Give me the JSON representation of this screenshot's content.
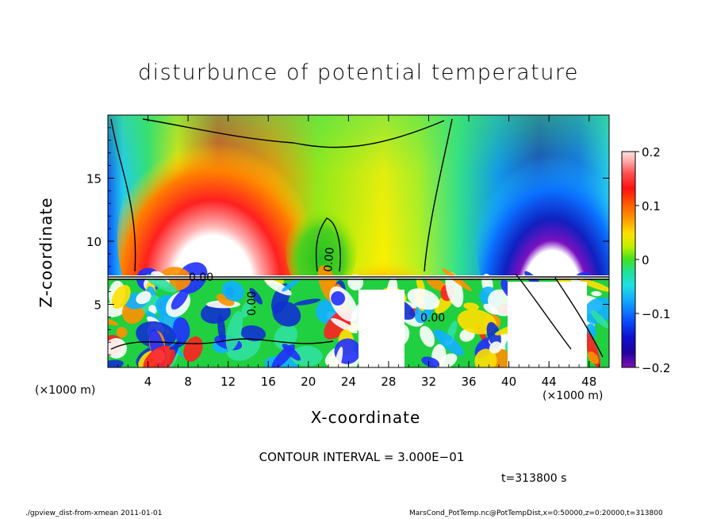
{
  "chart_data": {
    "type": "heatmap",
    "title": "disturbunce of potential temperature",
    "xlabel": "X-coordinate",
    "ylabel": "Z-coordinate",
    "x_unit": "(×1000 m)",
    "x_ticks": [
      4,
      8,
      12,
      16,
      20,
      24,
      28,
      32,
      36,
      40,
      44,
      48
    ],
    "y_ticks": [
      5,
      10,
      15
    ],
    "xlim": [
      0,
      50
    ],
    "ylim": [
      0,
      20
    ],
    "colorbar": {
      "ticks": [
        0.2,
        0.1,
        0,
        -0.1,
        -0.2
      ],
      "tick_labels": [
        "0.2",
        "0.1",
        "0",
        "−0.1",
        "−0.2"
      ],
      "range": [
        -0.2,
        0.2
      ]
    },
    "contour_labels": [
      "0.00",
      "0.00",
      "0.00",
      "0.00"
    ],
    "contour_interval_text": "CONTOUR INTERVAL = 3.000E−01",
    "time_text": "t=313800 s"
  },
  "footer": {
    "left": "./gpview_dist-from-xmean   2011-01-01",
    "right": "MarsCond_PotTemp.nc@PotTempDist,x=0:50000,z=0:20000,t=313800"
  }
}
